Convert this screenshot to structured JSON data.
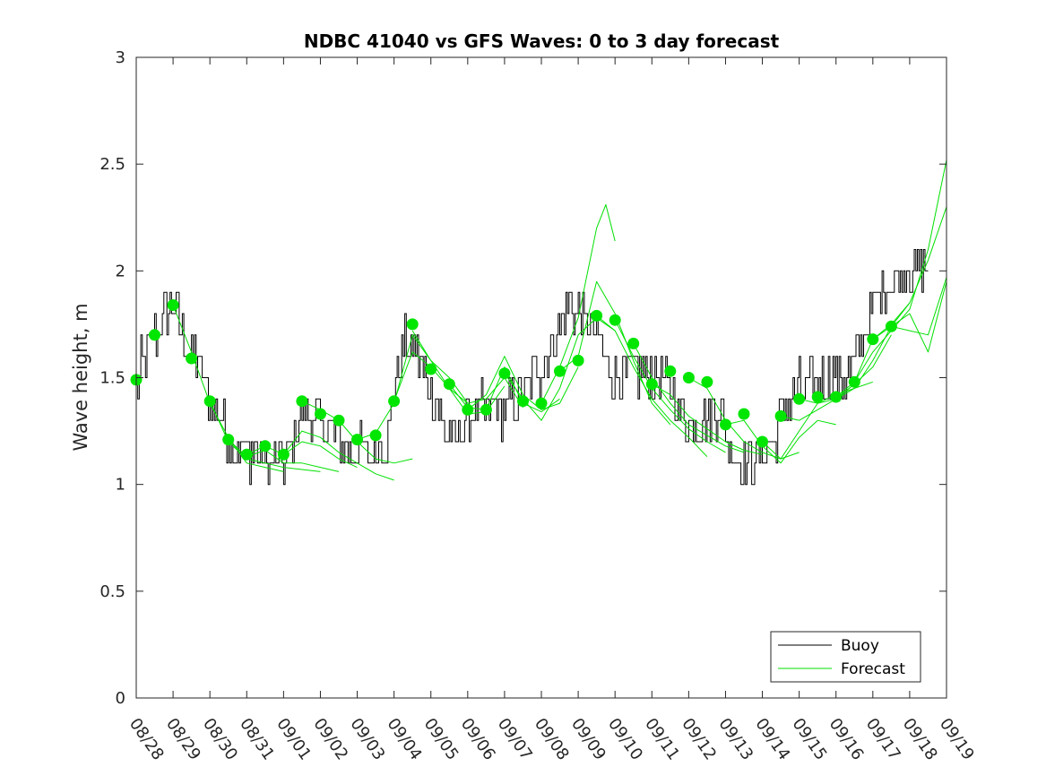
{
  "chart_data": {
    "type": "line",
    "title": "NDBC 41040 vs GFS Waves: 0 to 3 day forecast",
    "xlabel": "",
    "ylabel": "Wave height, m",
    "xlim": [
      0,
      22
    ],
    "ylim": [
      0,
      3
    ],
    "yticks": [
      0,
      0.5,
      1,
      1.5,
      2,
      2.5,
      3
    ],
    "ytick_labels": [
      "0",
      "0.5",
      "1",
      "1.5",
      "2",
      "2.5",
      "3"
    ],
    "xtick_labels": [
      "08/28",
      "08/29",
      "08/30",
      "08/31",
      "09/01",
      "09/02",
      "09/03",
      "09/04",
      "09/05",
      "09/06",
      "09/07",
      "09/08",
      "09/09",
      "09/10",
      "09/11",
      "09/12",
      "09/13",
      "09/14",
      "09/15",
      "09/16",
      "09/17",
      "09/18",
      "09/19"
    ],
    "legend": {
      "placement": "bottom-right",
      "entries": [
        "Buoy",
        "Forecast"
      ]
    },
    "colors": {
      "buoy": "#000000",
      "forecast": "#00e000",
      "marker": "#00e600",
      "axis": "#262626"
    },
    "buoy_anchors": {
      "x": [
        0,
        0.2,
        0.5,
        0.8,
        1.0,
        1.3,
        1.6,
        2.0,
        2.4,
        2.7,
        3.0,
        3.3,
        3.6,
        4.0,
        4.3,
        4.5,
        4.8,
        5.2,
        5.6,
        6.0,
        6.4,
        6.8,
        7.0,
        7.3,
        7.6,
        8.0,
        8.3,
        8.6,
        9.0,
        9.3,
        9.6,
        10.0,
        10.4,
        10.8,
        11.2,
        11.5,
        11.8,
        12.0,
        12.3,
        12.6,
        13.0,
        13.4,
        13.8,
        14.2,
        14.6,
        15.0,
        15.4,
        15.8,
        16.2,
        16.6,
        17.0,
        17.3,
        17.6,
        18.0,
        18.4,
        18.8,
        19.2,
        19.6,
        20.0,
        20.3,
        20.6,
        21.0,
        21.3,
        21.5
      ],
      "y": [
        1.45,
        1.6,
        1.7,
        1.8,
        1.85,
        1.7,
        1.6,
        1.4,
        1.25,
        1.18,
        1.15,
        1.15,
        1.1,
        1.1,
        1.25,
        1.35,
        1.3,
        1.25,
        1.2,
        1.15,
        1.15,
        1.2,
        1.45,
        1.65,
        1.6,
        1.45,
        1.3,
        1.2,
        1.3,
        1.35,
        1.35,
        1.35,
        1.4,
        1.5,
        1.6,
        1.75,
        1.85,
        1.8,
        1.75,
        1.65,
        1.5,
        1.5,
        1.55,
        1.5,
        1.4,
        1.3,
        1.3,
        1.35,
        1.15,
        1.1,
        1.15,
        1.2,
        1.35,
        1.45,
        1.45,
        1.5,
        1.5,
        1.6,
        1.85,
        1.95,
        1.95,
        2.0,
        2.0,
        2.0
      ],
      "step_hours": 1,
      "quantization_m": 0.1
    },
    "forecast_markers": {
      "x": [
        0,
        0.5,
        1,
        1.5,
        2,
        2.5,
        3,
        3.5,
        4,
        4.5,
        5,
        5.5,
        6,
        6.5,
        7,
        7.5,
        8,
        8.5,
        9,
        9.5,
        10,
        10.5,
        11,
        11.5,
        12,
        12.5,
        13,
        13.5,
        14,
        14.5,
        15,
        15.5,
        16,
        16.5,
        17,
        17.5,
        18,
        18.5,
        19,
        19.5,
        20,
        20.5
      ],
      "y": [
        1.49,
        1.7,
        1.84,
        1.59,
        1.39,
        1.21,
        1.14,
        1.18,
        1.14,
        1.39,
        1.33,
        1.3,
        1.21,
        1.23,
        1.39,
        1.75,
        1.54,
        1.47,
        1.35,
        1.35,
        1.52,
        1.39,
        1.38,
        1.53,
        1.58,
        1.79,
        1.77,
        1.66,
        1.47,
        1.53,
        1.5,
        1.48,
        1.28,
        1.33,
        1.2,
        1.32,
        1.4,
        1.41,
        1.41,
        1.48,
        1.68,
        1.74
      ]
    },
    "forecast_runs": [
      {
        "x": [
          1.0,
          1.5,
          2.0,
          2.5,
          3.0,
          3.5,
          4.0
        ],
        "y": [
          1.84,
          1.62,
          1.38,
          1.22,
          1.1,
          1.08,
          1.06
        ]
      },
      {
        "x": [
          2.0,
          2.5,
          3.0,
          3.5,
          4.0,
          4.5,
          5.0
        ],
        "y": [
          1.39,
          1.2,
          1.12,
          1.1,
          1.08,
          1.07,
          1.06
        ]
      },
      {
        "x": [
          2.5,
          3.0,
          3.5,
          4.0,
          4.5,
          5.0,
          5.5
        ],
        "y": [
          1.21,
          1.13,
          1.16,
          1.1,
          1.1,
          1.08,
          1.06
        ]
      },
      {
        "x": [
          3.0,
          3.5,
          4.0,
          4.5,
          5.0,
          5.5,
          6.0
        ],
        "y": [
          1.14,
          1.18,
          1.14,
          1.2,
          1.18,
          1.12,
          1.08
        ]
      },
      {
        "x": [
          4.0,
          4.5,
          5.0,
          5.5,
          6.0,
          6.5,
          7.0
        ],
        "y": [
          1.14,
          1.25,
          1.22,
          1.15,
          1.1,
          1.05,
          1.02
        ]
      },
      {
        "x": [
          4.5,
          5.0,
          5.5,
          6.0,
          6.5,
          7.0,
          7.5
        ],
        "y": [
          1.39,
          1.35,
          1.3,
          1.2,
          1.12,
          1.1,
          1.12
        ]
      },
      {
        "x": [
          6.0,
          6.5,
          7.0,
          7.5,
          8.0,
          8.5,
          9.0
        ],
        "y": [
          1.21,
          1.24,
          1.38,
          1.7,
          1.58,
          1.45,
          1.38
        ]
      },
      {
        "x": [
          7.0,
          7.5,
          8.0,
          8.5,
          9.0,
          9.5,
          10.0
        ],
        "y": [
          1.39,
          1.62,
          1.55,
          1.45,
          1.33,
          1.34,
          1.46
        ]
      },
      {
        "x": [
          7.5,
          8.0,
          8.5,
          9.0,
          9.5,
          10.0,
          10.5
        ],
        "y": [
          1.72,
          1.58,
          1.5,
          1.38,
          1.4,
          1.5,
          1.36
        ]
      },
      {
        "x": [
          8.5,
          9.0,
          9.5,
          10.0,
          10.5,
          11.0,
          11.5
        ],
        "y": [
          1.47,
          1.36,
          1.35,
          1.55,
          1.38,
          1.34,
          1.4
        ]
      },
      {
        "x": [
          9.0,
          9.5,
          10.0,
          10.5,
          11.0,
          11.5,
          12.0
        ],
        "y": [
          1.35,
          1.42,
          1.6,
          1.42,
          1.35,
          1.38,
          1.55
        ]
      },
      {
        "x": [
          10.0,
          10.5,
          11.0,
          11.5,
          12.0,
          12.5,
          13.0
        ],
        "y": [
          1.52,
          1.4,
          1.3,
          1.45,
          1.7,
          1.78,
          1.72
        ]
      },
      {
        "x": [
          11.0,
          11.5,
          12.0,
          12.5,
          12.75,
          13.0
        ],
        "y": [
          1.38,
          1.55,
          1.78,
          2.2,
          2.31,
          2.14
        ]
      },
      {
        "x": [
          11.5,
          12.0,
          12.5,
          13.0,
          13.5,
          14.0,
          14.5
        ],
        "y": [
          1.53,
          1.6,
          1.95,
          1.8,
          1.58,
          1.38,
          1.28
        ]
      },
      {
        "x": [
          12.5,
          13.0,
          13.5,
          14.0,
          14.5,
          15.0,
          15.5
        ],
        "y": [
          1.79,
          1.72,
          1.55,
          1.4,
          1.3,
          1.22,
          1.13
        ]
      },
      {
        "x": [
          13.0,
          13.5,
          14.0,
          14.5,
          15.0,
          15.5,
          16.0
        ],
        "y": [
          1.77,
          1.6,
          1.45,
          1.35,
          1.26,
          1.2,
          1.15
        ]
      },
      {
        "x": [
          13.5,
          14.0,
          14.5,
          15.0,
          15.5,
          16.0,
          16.5
        ],
        "y": [
          1.66,
          1.5,
          1.38,
          1.28,
          1.23,
          1.18,
          1.15
        ]
      },
      {
        "x": [
          14.0,
          14.5,
          15.0,
          15.5,
          16.0,
          16.5,
          17.0
        ],
        "y": [
          1.47,
          1.42,
          1.32,
          1.26,
          1.2,
          1.16,
          1.14
        ]
      },
      {
        "x": [
          15.0,
          15.5,
          16.0,
          16.5,
          17.0,
          17.5,
          18.0
        ],
        "y": [
          1.5,
          1.45,
          1.3,
          1.2,
          1.15,
          1.12,
          1.15
        ]
      },
      {
        "x": [
          16.0,
          16.5,
          17.0,
          17.5,
          18.0,
          18.5,
          19.0
        ],
        "y": [
          1.28,
          1.3,
          1.18,
          1.1,
          1.22,
          1.3,
          1.28
        ]
      },
      {
        "x": [
          17.0,
          17.5,
          18.0,
          18.5,
          19.0,
          19.5,
          20.0
        ],
        "y": [
          1.2,
          1.12,
          1.25,
          1.38,
          1.4,
          1.45,
          1.48
        ]
      },
      {
        "x": [
          17.5,
          18.0,
          18.5,
          19.0,
          19.5,
          20.0,
          20.5
        ],
        "y": [
          1.32,
          1.3,
          1.35,
          1.4,
          1.47,
          1.55,
          1.7
        ]
      },
      {
        "x": [
          18.0,
          18.5,
          19.0,
          19.5,
          20.0,
          20.5,
          21.0
        ],
        "y": [
          1.4,
          1.38,
          1.42,
          1.45,
          1.58,
          1.74,
          1.85
        ]
      },
      {
        "x": [
          19.0,
          19.5,
          20.0,
          20.5,
          21.0,
          21.5,
          22.0
        ],
        "y": [
          1.41,
          1.48,
          1.62,
          1.72,
          1.82,
          2.1,
          2.52
        ]
      },
      {
        "x": [
          19.5,
          20.0,
          20.5,
          21.0,
          21.5,
          22.0
        ],
        "y": [
          1.48,
          1.68,
          1.75,
          1.85,
          2.05,
          2.3
        ]
      },
      {
        "x": [
          20.0,
          20.5,
          21.0,
          21.5,
          22.0
        ],
        "y": [
          1.68,
          1.74,
          1.72,
          1.7,
          1.97
        ]
      },
      {
        "x": [
          20.5,
          21.0,
          21.5,
          22.0
        ],
        "y": [
          1.74,
          1.8,
          1.62,
          1.95
        ]
      }
    ]
  }
}
